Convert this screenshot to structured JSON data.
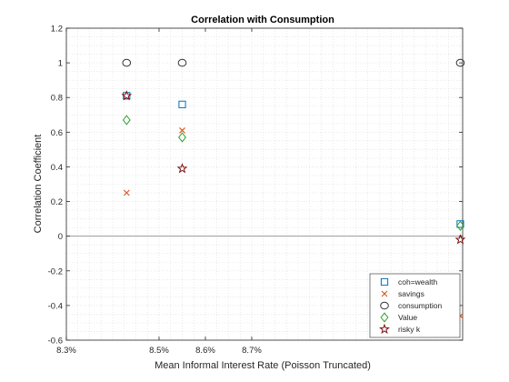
{
  "chart_data": {
    "type": "scatter",
    "title": "Correlation with Consumption",
    "xlabel": "Mean Informal Interest Rate (Poisson Truncated)",
    "ylabel": "Correlation Coefficient",
    "xlim": [
      8.3,
      9.155
    ],
    "ylim": [
      -0.6,
      1.2
    ],
    "x_ticks": [
      8.3,
      8.5,
      8.6,
      8.7
    ],
    "x_tick_labels": [
      "8.3%",
      "8.5%",
      "8.6%",
      "8.7%"
    ],
    "y_ticks": [
      -0.6,
      -0.4,
      -0.2,
      0,
      0.2,
      0.4,
      0.6,
      0.8,
      1,
      1.2
    ],
    "y_tick_labels": [
      "-0.6",
      "-0.4",
      "-0.2",
      "0",
      "0.2",
      "0.4",
      "0.6",
      "0.8",
      "1",
      "1.2"
    ],
    "grid": "minor-dotted",
    "zero_line": true,
    "legend": "bottom-right",
    "x": [
      8.43,
      8.55,
      9.15
    ],
    "series": [
      {
        "name": "coh=wealth",
        "marker": "square",
        "color": "#0072BD",
        "values": [
          0.81,
          0.76,
          0.07
        ]
      },
      {
        "name": "savings",
        "marker": "x",
        "color": "#D95319",
        "values": [
          0.25,
          0.61,
          -0.46
        ]
      },
      {
        "name": "consumption",
        "marker": "circle",
        "color": "#333333",
        "values": [
          1.0,
          1.0,
          1.0
        ]
      },
      {
        "name": "Value",
        "marker": "diamond",
        "color": "#2CA02C",
        "values": [
          0.67,
          0.57,
          0.06
        ]
      },
      {
        "name": "risky k",
        "marker": "pentagram",
        "color": "#7E1010",
        "values": [
          0.81,
          0.39,
          -0.02
        ]
      }
    ]
  }
}
